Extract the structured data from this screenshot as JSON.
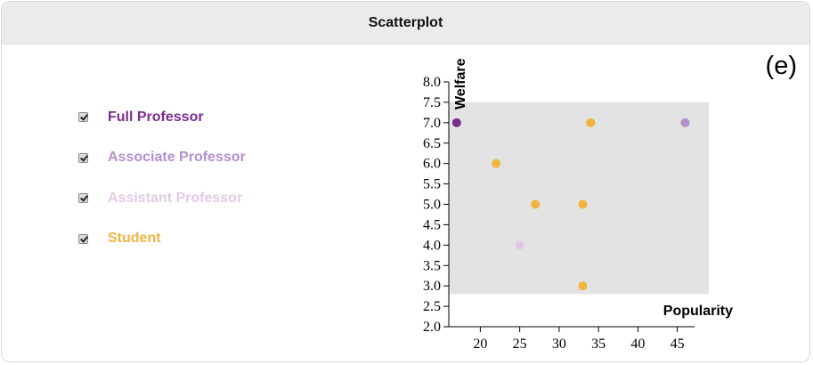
{
  "panel": {
    "title": "Scatterplot",
    "letter": "(e)"
  },
  "legend": [
    {
      "label": "Full Professor",
      "color": "#7b2d8e",
      "checked": true
    },
    {
      "label": "Associate Professor",
      "color": "#b78fcc",
      "checked": true
    },
    {
      "label": "Assistant Professor",
      "color": "#e2c9e8",
      "checked": true
    },
    {
      "label": "Student",
      "color": "#f0b441",
      "checked": true
    }
  ],
  "chart_data": {
    "type": "scatter",
    "xlabel": "Popularity",
    "ylabel": "Welfare",
    "xlim": [
      16,
      49
    ],
    "ylim": [
      2.0,
      8.0
    ],
    "x_ticks": [
      20,
      25,
      30,
      35,
      40,
      45
    ],
    "y_ticks": [
      "2.0",
      "2.5",
      "3.0",
      "3.5",
      "4.0",
      "4.5",
      "5.0",
      "5.5",
      "6.0",
      "6.5",
      "7.0",
      "7.5",
      "8.0"
    ],
    "plot_area_color": "#e3e3e3",
    "plot_area_range": {
      "x": [
        16,
        49
      ],
      "y": [
        2.8,
        7.5
      ]
    },
    "series": [
      {
        "name": "Full Professor",
        "color": "#7b2d8e",
        "points": [
          [
            17,
            7.0
          ]
        ]
      },
      {
        "name": "Associate Professor",
        "color": "#b78fcc",
        "points": [
          [
            46,
            7.0
          ]
        ]
      },
      {
        "name": "Assistant Professor",
        "color": "#e2c9e8",
        "points": [
          [
            25,
            4.0
          ]
        ]
      },
      {
        "name": "Student",
        "color": "#f0b441",
        "points": [
          [
            34,
            7.0
          ],
          [
            22,
            6.0
          ],
          [
            27,
            5.0
          ],
          [
            33,
            5.0
          ],
          [
            33,
            3.0
          ]
        ]
      }
    ]
  }
}
